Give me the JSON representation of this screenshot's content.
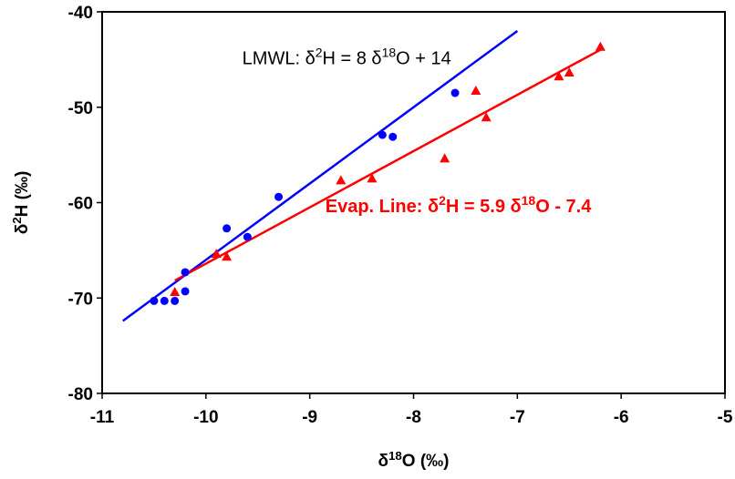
{
  "chart_data": {
    "type": "scatter",
    "x_label": [
      {
        "text": "δ"
      },
      {
        "text": "18",
        "sup": true
      },
      {
        "text": "O (‰)"
      }
    ],
    "y_label": [
      {
        "text": "δ"
      },
      {
        "text": "2",
        "sup": true
      },
      {
        "text": "H (‰)"
      }
    ],
    "xlim": [
      -11,
      -5
    ],
    "xticks": [
      -11,
      -10,
      -9,
      -8,
      -7,
      -6,
      -5
    ],
    "ylim": [
      -80,
      -40
    ],
    "yticks": [
      -80,
      -70,
      -60,
      -50,
      -40
    ],
    "series": [
      {
        "marker": "circle",
        "color": "#0000ff",
        "x": [
          -10.5,
          -10.4,
          -10.3,
          -10.2,
          -10.2,
          -9.8,
          -9.6,
          -9.3,
          -8.3,
          -8.2,
          -7.6
        ],
        "values": [
          -70.3,
          -70.3,
          -70.3,
          -67.3,
          -69.3,
          -62.7,
          -63.6,
          -59.4,
          -52.9,
          -53.1,
          -48.5
        ]
      },
      {
        "marker": "triangle",
        "color": "#ff0000",
        "x": [
          -10.3,
          -9.9,
          -9.8,
          -8.7,
          -8.4,
          -7.7,
          -7.4,
          -7.3,
          -6.6,
          -6.5,
          -6.2
        ],
        "values": [
          -69.4,
          -65.4,
          -65.7,
          -57.7,
          -57.5,
          -55.4,
          -48.3,
          -51.1,
          -46.8,
          -46.4,
          -43.7
        ]
      }
    ],
    "fit_lines": [
      {
        "color": "#0000ff",
        "x": [
          -10.8,
          -7
        ],
        "values": [
          -72.4,
          -42
        ]
      },
      {
        "color": "#ff0000",
        "x": [
          -10.3,
          -6.2
        ],
        "values": [
          -68.17,
          -43.98
        ]
      }
    ],
    "annotations": [
      {
        "color": "#000000",
        "bold": false,
        "at": [
          -9.65,
          -45.5
        ],
        "segments": [
          {
            "text": "LMWL: δ"
          },
          {
            "text": "2",
            "sup": true
          },
          {
            "text": "H = 8 δ"
          },
          {
            "text": "18",
            "sup": true
          },
          {
            "text": "O + 14"
          }
        ]
      },
      {
        "color": "#ff0000",
        "bold": true,
        "at": [
          -8.85,
          -61
        ],
        "segments": [
          {
            "text": "Evap. Line: δ"
          },
          {
            "text": "2",
            "sup": true
          },
          {
            "text": "H = 5.9 δ"
          },
          {
            "text": "18",
            "sup": true
          },
          {
            "text": "O - 7.4"
          }
        ]
      }
    ]
  }
}
